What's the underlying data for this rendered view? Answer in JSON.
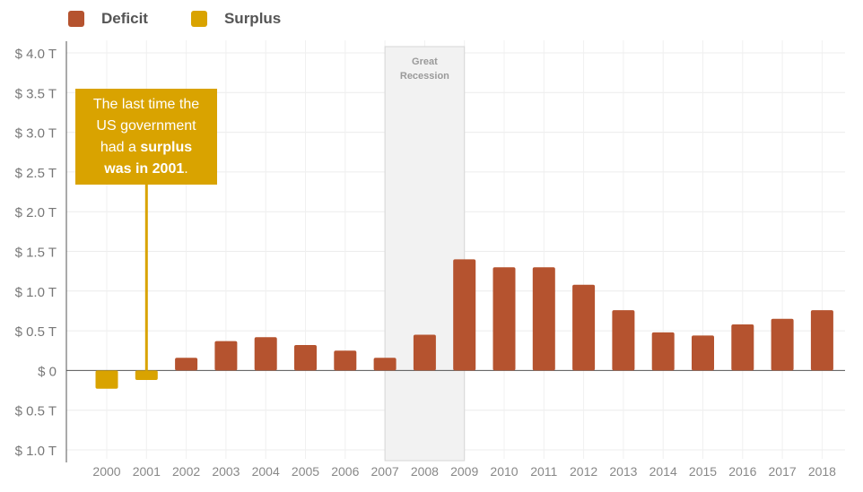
{
  "legend": [
    {
      "label": "Deficit",
      "color": "#b5532f"
    },
    {
      "label": "Surplus",
      "color": "#d9a300"
    }
  ],
  "annotation": {
    "line1": "The last time the",
    "line2": "US government",
    "line3_pre": "had a ",
    "line3_bold": "surplus",
    "line4_bold": "was in 2001",
    "line4_post": "."
  },
  "chart_data": {
    "type": "bar",
    "categories": [
      "2000",
      "2001",
      "2002",
      "2003",
      "2004",
      "2005",
      "2006",
      "2007",
      "2008",
      "2009",
      "2010",
      "2011",
      "2012",
      "2013",
      "2014",
      "2015",
      "2016",
      "2017",
      "2018"
    ],
    "series": [
      {
        "name": "Deficit",
        "color": "#b5532f",
        "values": [
          null,
          null,
          0.16,
          0.37,
          0.42,
          0.32,
          0.25,
          0.16,
          0.45,
          1.4,
          1.3,
          1.3,
          1.08,
          0.76,
          0.48,
          0.44,
          0.58,
          0.65,
          0.76
        ]
      },
      {
        "name": "Surplus",
        "color": "#d9a300",
        "values": [
          0.23,
          0.12,
          null,
          null,
          null,
          null,
          null,
          null,
          null,
          null,
          null,
          null,
          null,
          null,
          null,
          null,
          null,
          null,
          null
        ]
      }
    ],
    "ylim": [
      -1.0,
      4.0
    ],
    "yticks": [
      4.0,
      3.5,
      3.0,
      2.5,
      2.0,
      1.5,
      1.0,
      0.5,
      0,
      -0.5,
      -1.0
    ],
    "ytick_labels": [
      "$ 4.0 T",
      "$ 3.5 T",
      "$ 3.0 T",
      "$ 2.5 T",
      "$ 2.0 T",
      "$ 1.5 T",
      "$ 1.0 T",
      "$ 0.5 T",
      "$ 0",
      "$ 0.5 T",
      "$ 1.0 T"
    ],
    "shaded_region": {
      "label_line1": "Great",
      "label_line2": "Recession",
      "from": "2007",
      "to": "2009"
    },
    "grid": true
  }
}
